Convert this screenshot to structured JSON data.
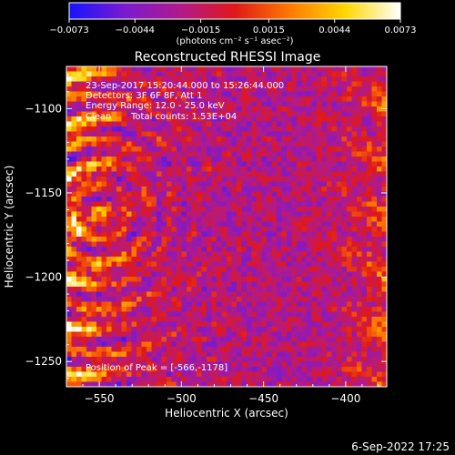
{
  "chart_data": {
    "type": "heatmap",
    "title": "Reconstructed RHESSI Image",
    "xlabel": "Heliocentric X (arcsec)",
    "ylabel": "Heliocentric Y (arcsec)",
    "xlim": [
      -570,
      -375
    ],
    "ylim": [
      -1265,
      -1075
    ],
    "x_ticks": [
      -550,
      -500,
      -450,
      -400
    ],
    "y_ticks": [
      -1250,
      -1200,
      -1150,
      -1100
    ],
    "x_tick_labels": [
      "−550",
      "−500",
      "−450",
      "−400"
    ],
    "y_tick_labels": [
      "−1250",
      "−1200",
      "−1150",
      "−1100"
    ],
    "colorbar": {
      "min": -0.0073,
      "max": 0.0073,
      "ticks": [
        -0.0073,
        -0.0044,
        -0.0015,
        0.0015,
        0.0044,
        0.0073
      ],
      "tick_labels": [
        "−0.0073",
        "−0.0044",
        "−0.0015",
        "0.0015",
        "0.0044",
        "0.0073"
      ],
      "units_label": "(photons cm⁻² s⁻¹ asec⁻²)",
      "colors": [
        "#1414ff",
        "#7a1ad0",
        "#b01a8c",
        "#e01818",
        "#ff7a00",
        "#ffd800",
        "#ffffff"
      ]
    },
    "annotations": {
      "time": "23-Sep-2017 15:20:44.000 to 15:26:44.000",
      "detectors": "Detectors: 3F 6F 8F, Att 1",
      "energy": "Energy Range: 12.0 - 25.0 keV",
      "method": "Clean",
      "counts": "Total counts: 1.53E+04",
      "peak": "Position of Peak = [-566,-1178]"
    },
    "peak": {
      "x": -566,
      "y": -1178
    }
  },
  "footer": {
    "date": "6-Sep-2022 17:25"
  }
}
